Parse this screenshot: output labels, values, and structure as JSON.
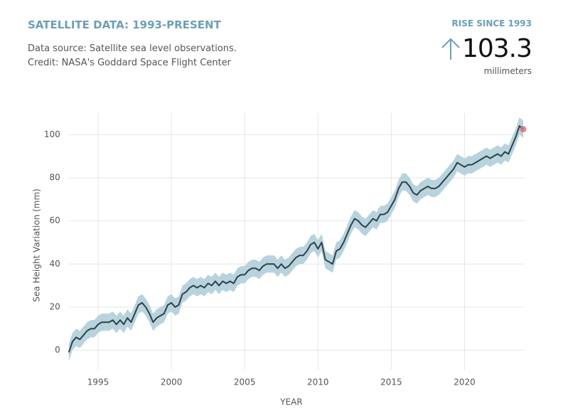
{
  "header": {
    "title": "SATELLITE DATA: 1993-PRESENT",
    "source": "Data source: Satellite sea level observations.",
    "credit": "Credit: NASA's Goddard Space Flight Center",
    "stat_label": "RISE SINCE 1993",
    "stat_value": "103.3",
    "stat_unit": "millimeters"
  },
  "chart_data": {
    "type": "line",
    "x_label": "YEAR",
    "y_label": "Sea Height Variation (mm)",
    "xlim": [
      1993,
      2024.1
    ],
    "ylim": [
      -9,
      110
    ],
    "xticks": [
      1995,
      2000,
      2005,
      2010,
      2015,
      2020
    ],
    "yticks": [
      0,
      20,
      40,
      60,
      80,
      100
    ],
    "grid": true,
    "series": [
      {
        "color": "#2d4149",
        "band_color": "#b8d3dd",
        "marker_color": "#d9716f",
        "error": 4,
        "x": [
          1993,
          1993.25,
          1993.5,
          1993.75,
          1994,
          1994.25,
          1994.5,
          1994.75,
          1995,
          1995.25,
          1995.5,
          1995.75,
          1996,
          1996.25,
          1996.5,
          1996.75,
          1997,
          1997.25,
          1997.5,
          1997.75,
          1998,
          1998.25,
          1998.5,
          1998.75,
          1999,
          1999.25,
          1999.5,
          1999.75,
          2000,
          2000.25,
          2000.5,
          2000.75,
          2001,
          2001.25,
          2001.5,
          2001.75,
          2002,
          2002.25,
          2002.5,
          2002.75,
          2003,
          2003.25,
          2003.5,
          2003.75,
          2004,
          2004.25,
          2004.5,
          2004.75,
          2005,
          2005.25,
          2005.5,
          2005.75,
          2006,
          2006.25,
          2006.5,
          2006.75,
          2007,
          2007.25,
          2007.5,
          2007.75,
          2008,
          2008.25,
          2008.5,
          2008.75,
          2009,
          2009.25,
          2009.5,
          2009.75,
          2010,
          2010.25,
          2010.5,
          2010.75,
          2011,
          2011.25,
          2011.5,
          2011.75,
          2012,
          2012.25,
          2012.5,
          2012.75,
          2013,
          2013.25,
          2013.5,
          2013.75,
          2014,
          2014.25,
          2014.5,
          2014.75,
          2015,
          2015.25,
          2015.5,
          2015.75,
          2016,
          2016.25,
          2016.5,
          2016.75,
          2017,
          2017.25,
          2017.5,
          2017.75,
          2018,
          2018.25,
          2018.5,
          2018.75,
          2019,
          2019.25,
          2019.5,
          2019.75,
          2020,
          2020.25,
          2020.5,
          2020.75,
          2021,
          2021.25,
          2021.5,
          2021.75,
          2022,
          2022.25,
          2022.5,
          2022.75,
          2023,
          2023.25,
          2023.5,
          2023.75,
          2024
        ],
        "values": [
          -1,
          4,
          6,
          5,
          7,
          9,
          10,
          10,
          12,
          13,
          13,
          13,
          14,
          12,
          14,
          12,
          15,
          13,
          17,
          21,
          22,
          20,
          17,
          13,
          15,
          16,
          17,
          21,
          22,
          20,
          21,
          26,
          27,
          29,
          30,
          29,
          30,
          29,
          31,
          30,
          32,
          30,
          32,
          31,
          32,
          31,
          34,
          35,
          35,
          37,
          38,
          38,
          37,
          39,
          40,
          40,
          40,
          38,
          40,
          38,
          39,
          41,
          43,
          44,
          44,
          46,
          49,
          50,
          47,
          50,
          42,
          41,
          40,
          46,
          47,
          50,
          54,
          58,
          61,
          60,
          58,
          57,
          59,
          61,
          60,
          63,
          63,
          64,
          67,
          70,
          75,
          78,
          78,
          76,
          73,
          72,
          74,
          75,
          76,
          75,
          75,
          76,
          78,
          80,
          82,
          84,
          87,
          86,
          85,
          86,
          86,
          87,
          88,
          89,
          90,
          89,
          90,
          91,
          90,
          92,
          91,
          95,
          99,
          104,
          102.5
        ]
      }
    ]
  }
}
